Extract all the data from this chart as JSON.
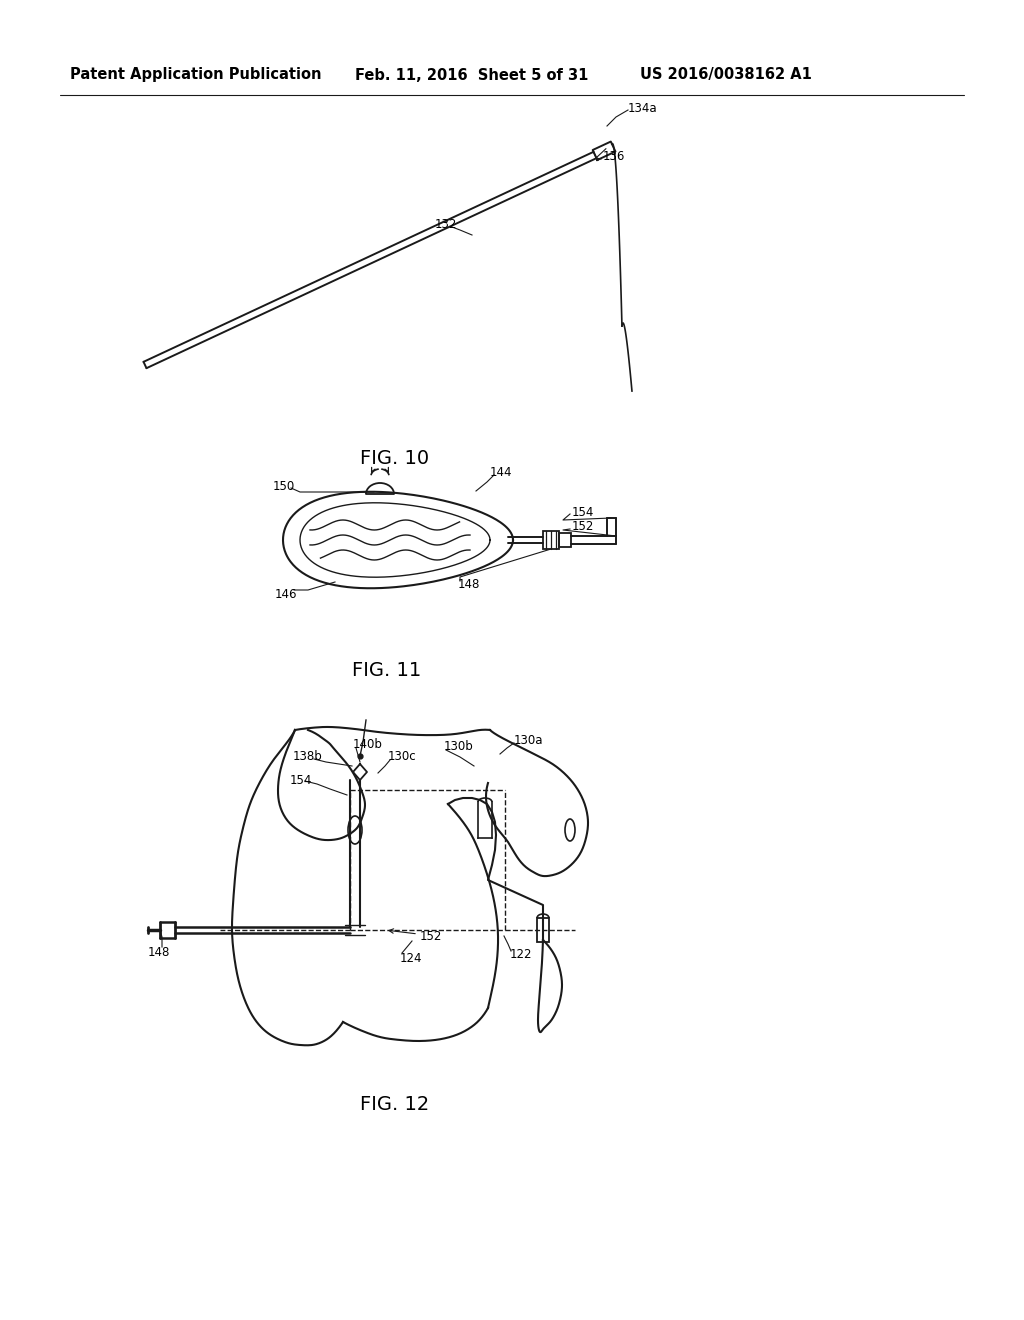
{
  "background_color": "#ffffff",
  "header_left": "Patent Application Publication",
  "header_mid": "Feb. 11, 2016  Sheet 5 of 31",
  "header_right": "US 2016/0038162 A1",
  "fig10_label": "FIG. 10",
  "fig11_label": "FIG. 11",
  "fig12_label": "FIG. 12",
  "line_color": "#1a1a1a",
  "font_size_header": 10.5,
  "font_size_fig": 14,
  "font_size_annot": 8.5
}
